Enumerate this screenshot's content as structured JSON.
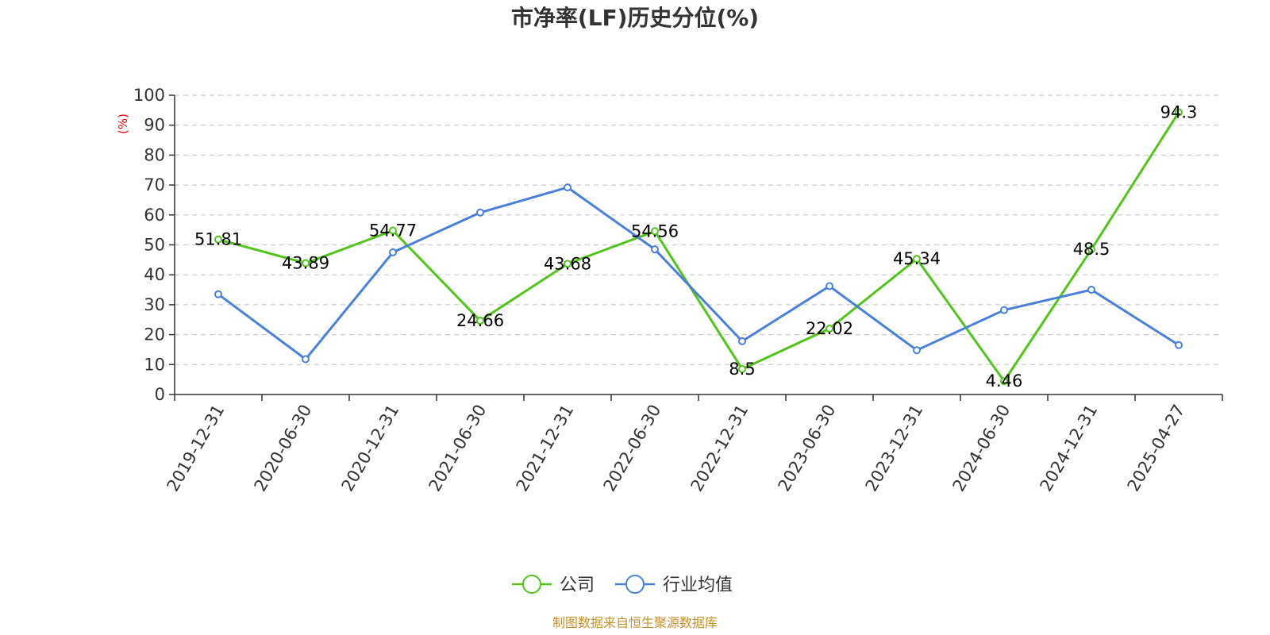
{
  "chart_data": {
    "type": "line",
    "title": "市净率(LF)历史分位(%)",
    "ylabel": "(%)",
    "xlabel": "",
    "ylim": [
      0,
      100
    ],
    "yticks": [
      0,
      10,
      20,
      30,
      40,
      50,
      60,
      70,
      80,
      90,
      100
    ],
    "grid": true,
    "legend_position": "bottom-center",
    "categories": [
      "2019-12-31",
      "2020-06-30",
      "2020-12-31",
      "2021-06-30",
      "2021-12-31",
      "2022-06-30",
      "2022-12-31",
      "2023-06-30",
      "2023-12-31",
      "2024-06-30",
      "2024-12-31",
      "2025-04-27"
    ],
    "series": [
      {
        "name": "公司",
        "color": "#52c41a",
        "values": [
          51.81,
          43.89,
          54.77,
          24.66,
          43.68,
          54.56,
          8.5,
          22.02,
          45.34,
          4.46,
          48.5,
          94.3
        ],
        "labels": [
          "51.81",
          "43.89",
          "54.77",
          "24.66",
          "43.68",
          "54.56",
          "8.5",
          "22.02",
          "45.34",
          "4.46",
          "48.5",
          "94.3"
        ]
      },
      {
        "name": "行业均值",
        "color": "#4a7fdc",
        "values": [
          33.5,
          11.8,
          47.5,
          60.8,
          69.2,
          48.5,
          17.8,
          36.2,
          14.8,
          28.2,
          35.0,
          16.5
        ]
      }
    ],
    "source": "制图数据来自恒生聚源数据库"
  }
}
